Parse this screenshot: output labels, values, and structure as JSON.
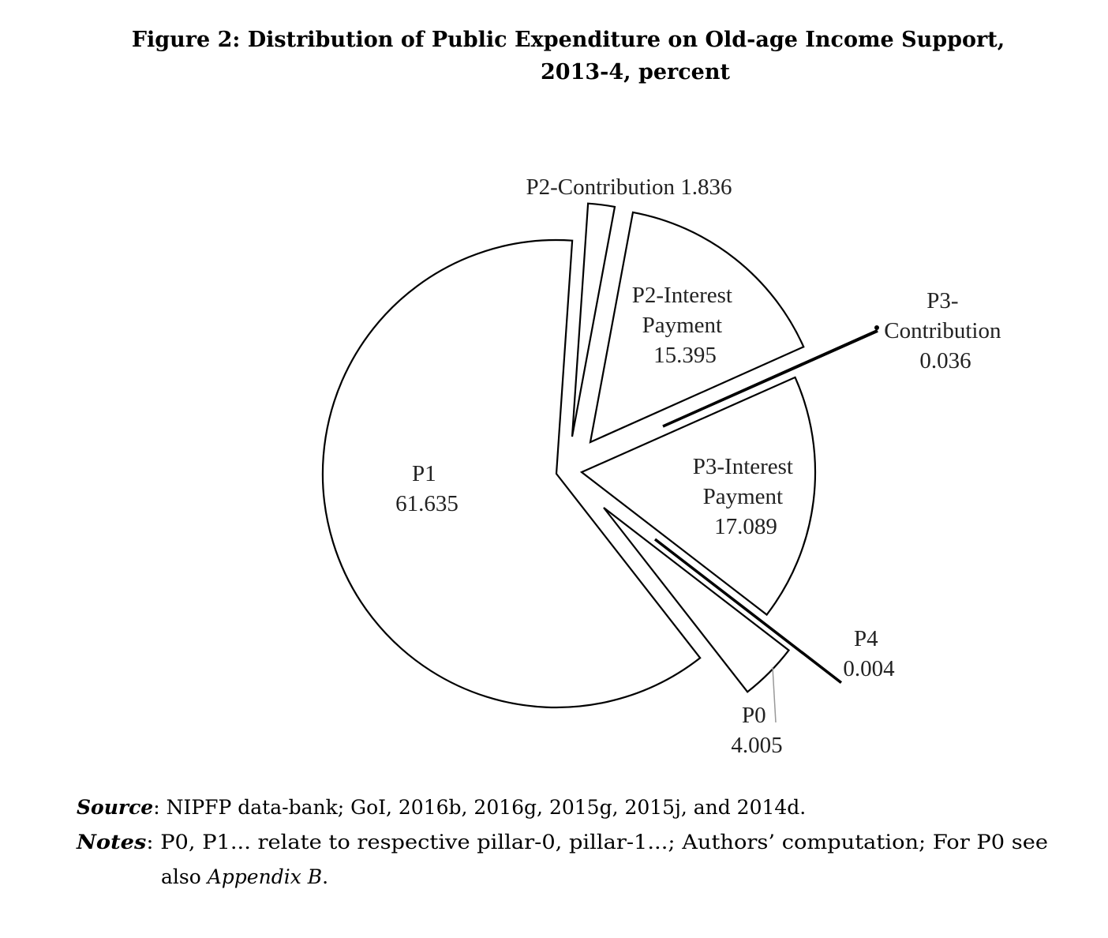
{
  "chart_data": {
    "type": "pie",
    "title_line1": "Figure 2: Distribution of Public Expenditure on Old-age Income Support,",
    "title_line2": "2013-4, percent",
    "exploded": true,
    "slices": [
      {
        "label": "P2-Contribution",
        "value": 1.836,
        "value_text": "1.836"
      },
      {
        "label_lines": [
          "P2-Interest",
          "Payment"
        ],
        "label": "P2-Interest Payment",
        "value": 15.395,
        "value_text": "15.395"
      },
      {
        "label_lines": [
          "P3-",
          "Contribution"
        ],
        "label": "P3-Contribution",
        "value": 0.036,
        "value_text": "0.036"
      },
      {
        "label_lines": [
          "P3-Interest",
          "Payment"
        ],
        "label": "P3-Interest Payment",
        "value": 17.089,
        "value_text": "17.089"
      },
      {
        "label": "P4",
        "value": 0.004,
        "value_text": "0.004"
      },
      {
        "label": "P0",
        "value": 4.005,
        "value_text": "4.005"
      },
      {
        "label": "P1",
        "value": 61.635,
        "value_text": "61.635"
      }
    ],
    "fill_color": "#ffffff",
    "stroke_color": "#000000"
  },
  "notes": {
    "source_label": "Source",
    "source_text": ": NIPFP data-bank; GoI, 2016b, 2016g, 2015g, 2015j, and 2014d.",
    "notes_label": "Notes",
    "notes_text": ": P0, P1... relate to respective pillar-0, pillar-1...; Authors’ computation; For P0 see",
    "notes_cont": "also ",
    "notes_appendix": "Appendix B",
    "notes_end": "."
  }
}
